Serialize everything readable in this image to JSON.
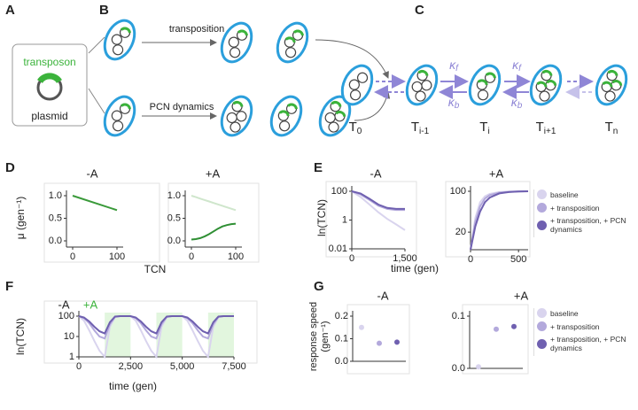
{
  "panel_labels": [
    "A",
    "B",
    "C",
    "D",
    "E",
    "F",
    "G"
  ],
  "diagram": {
    "transposon": "transposon",
    "plasmid": "plasmid",
    "transposition": "transposition",
    "pcn_dynamics": "PCN dynamics",
    "states": [
      {
        "symbol": "T",
        "sub": "0"
      },
      {
        "symbol": "T",
        "sub": "i-1"
      },
      {
        "symbol": "T",
        "sub": "i"
      },
      {
        "symbol": "T",
        "sub": "i+1"
      },
      {
        "symbol": "T",
        "sub": "n"
      }
    ],
    "rates": [
      {
        "symbol": "κ",
        "sub": "f"
      },
      {
        "symbol": "κ",
        "sub": "b"
      }
    ]
  },
  "chart_data": [
    {
      "type": "line",
      "title": "-A",
      "ylabel": "μ (gen⁻¹)",
      "xlabel": "TCN",
      "x": [
        0,
        100
      ],
      "series": [
        {
          "color": "#3a9a3a",
          "values": [
            1.0,
            0.68
          ]
        }
      ],
      "xlim": [
        0,
        100
      ],
      "ylim": [
        0,
        1
      ],
      "xticks": [
        0,
        100
      ],
      "yticks": [
        {
          "value": 0,
          "label": "0.0"
        },
        {
          "value": 0.5,
          "label": "0.5"
        },
        {
          "value": 1,
          "label": "1.0"
        }
      ]
    },
    {
      "type": "line",
      "title": "+A",
      "x": [
        0,
        10,
        20,
        30,
        40,
        50,
        60,
        70,
        80,
        90,
        100
      ],
      "series": [
        {
          "color": "#cfe6cc",
          "values": [
            1.0,
            0.968,
            0.936,
            0.904,
            0.872,
            0.84,
            0.808,
            0.776,
            0.744,
            0.712,
            0.68
          ]
        },
        {
          "color": "#2f8f34",
          "values": [
            0.03,
            0.04,
            0.06,
            0.1,
            0.15,
            0.21,
            0.27,
            0.32,
            0.35,
            0.37,
            0.38
          ]
        }
      ],
      "xlim": [
        0,
        100
      ],
      "ylim": [
        0,
        1
      ],
      "xticks": [
        0,
        100
      ],
      "yticks": [
        {
          "value": 0,
          "label": "0.0"
        },
        {
          "value": 0.5,
          "label": "0.5"
        },
        {
          "value": 1,
          "label": "1.0"
        }
      ]
    },
    {
      "type": "line",
      "yscale": "log",
      "title": "-A",
      "ylabel": "ln(TCN)",
      "xlabel": "time (gen)",
      "x": [
        0,
        250,
        500,
        750,
        1000,
        1250,
        1500
      ],
      "series": [
        {
          "color": "#d9d4ee",
          "values": [
            100,
            40,
            12,
            3.5,
            1.2,
            0.5,
            0.2
          ]
        },
        {
          "color": "#b3a9dc",
          "values": [
            100,
            60,
            25,
            10,
            6,
            5,
            5
          ]
        },
        {
          "color": "#6f60b0",
          "values": [
            100,
            70,
            30,
            12,
            7,
            6,
            6
          ]
        }
      ],
      "xlim": [
        0,
        1500
      ],
      "ylim": [
        0.01,
        100
      ],
      "xticks": [
        0,
        {
          "value": 1500,
          "label": "1,500"
        }
      ],
      "yticks": [
        0.01,
        1,
        100
      ]
    },
    {
      "type": "line",
      "yscale": "log",
      "title": "+A",
      "x": [
        0,
        50,
        100,
        150,
        200,
        300,
        400,
        500,
        600
      ],
      "series": [
        {
          "name": "baseline",
          "color": "#d9d4ee",
          "values": [
            10,
            35,
            65,
            82,
            90,
            97,
            99,
            100,
            100
          ]
        },
        {
          "name": "+ transposition",
          "color": "#b3a9dc",
          "values": [
            10,
            30,
            55,
            75,
            86,
            95,
            98,
            99,
            100
          ]
        },
        {
          "name": "+ transposition, + PCN dynamics",
          "color": "#6f60b0",
          "values": [
            10,
            25,
            45,
            65,
            78,
            92,
            97,
            99,
            100
          ]
        }
      ],
      "xlim": [
        0,
        600
      ],
      "ylim": [
        10,
        100
      ],
      "xticks": [
        0,
        500
      ],
      "yticks": [
        20,
        100
      ],
      "legend": "right"
    },
    {
      "type": "line",
      "yscale": "log",
      "title": "-A",
      "shade_label": "+A",
      "shade_color": "#e2f6de",
      "shade": [
        [
          1250,
          2500
        ],
        [
          3750,
          5000
        ],
        [
          6250,
          7500
        ]
      ],
      "ylabel": "ln(TCN)",
      "xlabel": "time (gen)",
      "x": [
        0,
        250,
        500,
        750,
        1000,
        1250,
        1500,
        1750,
        2000,
        2250,
        2500,
        2750,
        3000,
        3250,
        3500,
        3750,
        4000,
        4250,
        4500,
        4750,
        5000,
        5250,
        5500,
        5750,
        6000,
        6250,
        6500,
        6750,
        7000,
        7250,
        7500
      ],
      "series": [
        {
          "color": "#d9d4ee",
          "values": [
            100,
            60,
            20,
            6,
            2,
            1,
            30,
            90,
            100,
            100,
            100,
            60,
            20,
            6,
            2,
            1,
            30,
            90,
            100,
            100,
            100,
            60,
            20,
            6,
            2,
            1,
            30,
            90,
            100,
            100,
            100
          ]
        },
        {
          "color": "#b3a9dc",
          "values": [
            100,
            80,
            45,
            20,
            10,
            8,
            40,
            92,
            100,
            100,
            100,
            80,
            45,
            20,
            10,
            8,
            40,
            92,
            100,
            100,
            100,
            80,
            45,
            20,
            10,
            8,
            40,
            92,
            100,
            100,
            100
          ]
        },
        {
          "color": "#6f60b0",
          "values": [
            100,
            85,
            55,
            30,
            18,
            14,
            50,
            95,
            100,
            100,
            100,
            85,
            55,
            30,
            18,
            14,
            50,
            95,
            100,
            100,
            100,
            85,
            55,
            30,
            18,
            14,
            50,
            95,
            100,
            100,
            100
          ]
        }
      ],
      "xlim": [
        0,
        7500
      ],
      "ylim": [
        1,
        100
      ],
      "xticks": [
        0,
        {
          "value": 2500,
          "label": "2,500"
        },
        {
          "value": 5000,
          "label": "5,000"
        },
        {
          "value": 7500,
          "label": "7,500"
        }
      ],
      "yticks": [
        1,
        10,
        100
      ]
    },
    {
      "type": "dot",
      "title": "-A",
      "ylabel": [
        "response speed",
        "(gen⁻¹)"
      ],
      "categories": [
        null,
        null,
        null
      ],
      "values": [
        0.15,
        0.08,
        0.085
      ],
      "colors": [
        "#d9d4ee",
        "#b3a9dc",
        "#6f60b0"
      ],
      "ylim": [
        0,
        0.2
      ],
      "yticks": [
        {
          "value": 0,
          "label": "0.0"
        },
        0.1,
        0.2
      ]
    },
    {
      "type": "dot",
      "title": "+A",
      "categories": [
        null,
        null,
        null
      ],
      "values": [
        0.003,
        0.075,
        0.08
      ],
      "colors": [
        "#d9d4ee",
        "#b3a9dc",
        "#6f60b0"
      ],
      "names": [
        "baseline",
        "+ transposition",
        "+ transposition, + PCN dynamics"
      ],
      "ylim": [
        0,
        0.1
      ],
      "yticks": [
        {
          "value": 0,
          "label": "0.0"
        },
        0.1
      ],
      "legend": "right"
    }
  ]
}
